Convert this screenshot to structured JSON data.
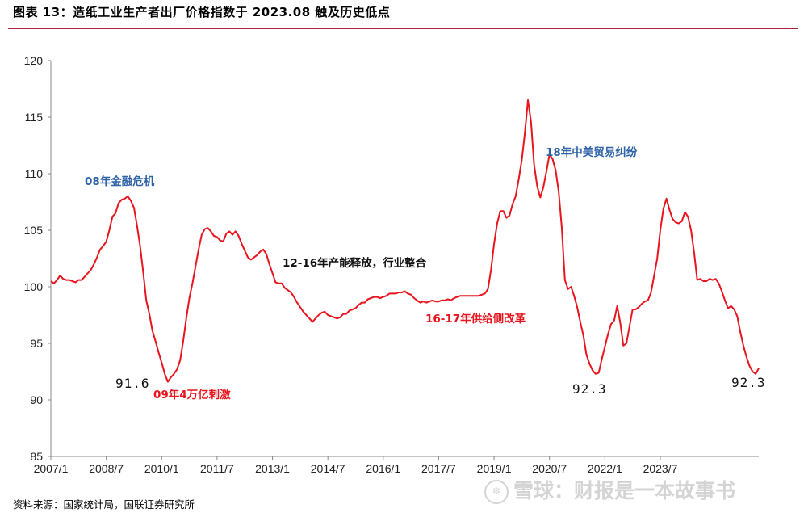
{
  "header": {
    "title": "图表 13：造纸工业生产者出厂价格指数于 2023.08 触及历史低点"
  },
  "footer": {
    "source": "资料来源：国家统计局，国联证券研究所"
  },
  "watermark": {
    "text": "雪球：财报是一本故事书"
  },
  "colors": {
    "line": "#e8141e",
    "accent": "#a8223a",
    "annotation_blue": "#2f63a8",
    "annotation_red": "#e8141e",
    "annotation_black": "#111111"
  },
  "chart_data": {
    "type": "line",
    "title": "",
    "xlabel": "",
    "ylabel": "",
    "ylim": [
      85,
      120
    ],
    "yticks": [
      85,
      90,
      95,
      100,
      105,
      110,
      115,
      120
    ],
    "xticks": [
      "2007/1",
      "2008/7",
      "2010/1",
      "2011/7",
      "2013/1",
      "2014/7",
      "2016/1",
      "2017/7",
      "2019/1",
      "2020/7",
      "2022/1",
      "2023/7"
    ],
    "grid": false,
    "legend": "none",
    "series": [
      {
        "values": [
          100.5,
          100.3,
          100.6,
          101.0,
          100.7,
          100.6,
          100.6,
          100.5,
          100.4,
          100.6,
          100.6,
          100.9,
          101.2,
          101.5,
          102.0,
          102.6,
          103.3,
          103.6,
          104.0,
          105.0,
          106.2,
          106.5,
          107.4,
          107.7,
          107.8,
          108.0,
          107.6,
          107.0,
          105.4,
          103.6,
          101.3,
          98.8,
          97.6,
          96.1,
          95.2,
          94.2,
          93.3,
          92.3,
          91.6,
          92.0,
          92.3,
          92.7,
          93.5,
          95.2,
          97.2,
          99.0,
          100.3,
          101.8,
          103.3,
          104.6,
          105.1,
          105.2,
          104.9,
          104.5,
          104.4,
          104.1,
          104.0,
          104.7,
          104.9,
          104.6,
          104.9,
          104.5,
          103.8,
          103.2,
          102.6,
          102.4,
          102.6,
          102.8,
          103.1,
          103.3,
          102.9,
          102.0,
          101.2,
          100.4,
          100.3,
          100.3,
          99.9,
          99.7,
          99.5,
          99.1,
          98.6,
          98.2,
          97.8,
          97.5,
          97.2,
          96.9,
          97.2,
          97.5,
          97.7,
          97.8,
          97.5,
          97.4,
          97.3,
          97.2,
          97.3,
          97.6,
          97.6,
          97.9,
          98.0,
          98.1,
          98.4,
          98.6,
          98.6,
          98.9,
          99.0,
          99.1,
          99.1,
          99.0,
          99.1,
          99.2,
          99.4,
          99.4,
          99.4,
          99.5,
          99.5,
          99.6,
          99.4,
          99.3,
          99.0,
          98.8,
          98.6,
          98.7,
          98.6,
          98.7,
          98.8,
          98.7,
          98.7,
          98.8,
          98.8,
          98.9,
          98.8,
          99.0,
          99.1,
          99.2,
          99.2,
          99.2,
          99.2,
          99.2,
          99.2,
          99.2,
          99.3,
          99.4,
          99.8,
          101.5,
          103.8,
          105.6,
          106.7,
          106.7,
          106.1,
          106.3,
          107.3,
          108.0,
          109.5,
          111.2,
          113.6,
          116.5,
          114.6,
          110.8,
          108.9,
          107.9,
          108.8,
          110.2,
          111.7,
          111.3,
          110.3,
          108.4,
          105.2,
          100.6,
          99.8,
          100.0,
          99.2,
          98.2,
          96.9,
          95.7,
          94.0,
          93.2,
          92.6,
          92.3,
          92.4,
          93.6,
          94.7,
          95.8,
          96.7,
          97.0,
          98.3,
          96.8,
          94.8,
          95.0,
          96.5,
          98.0,
          98.0,
          98.2,
          98.5,
          98.7,
          98.8,
          99.5,
          101.0,
          102.5,
          105.0,
          106.9,
          107.8,
          106.8,
          106.0,
          105.7,
          105.6,
          105.8,
          106.6,
          106.2,
          105.0,
          103.0,
          100.6,
          100.7,
          100.5,
          100.5,
          100.7,
          100.6,
          100.7,
          100.3,
          99.6,
          98.8,
          98.1,
          98.3,
          98.0,
          97.4,
          96.0,
          94.8,
          93.8,
          93.0,
          92.5,
          92.3,
          92.8
        ]
      }
    ],
    "annotations": [
      {
        "text": "08年金融危机",
        "color": "blue"
      },
      {
        "text": "91.6",
        "color": "black"
      },
      {
        "text": "09年4万亿刺激",
        "color": "red"
      },
      {
        "text": "12-16年产能释放，行业整合",
        "color": "black"
      },
      {
        "text": "16-17年供给侧改革",
        "color": "red"
      },
      {
        "text": "18年中美贸易纠纷",
        "color": "blue"
      },
      {
        "text": "92.3",
        "color": "black"
      },
      {
        "text": "92.3",
        "color": "black"
      }
    ]
  }
}
